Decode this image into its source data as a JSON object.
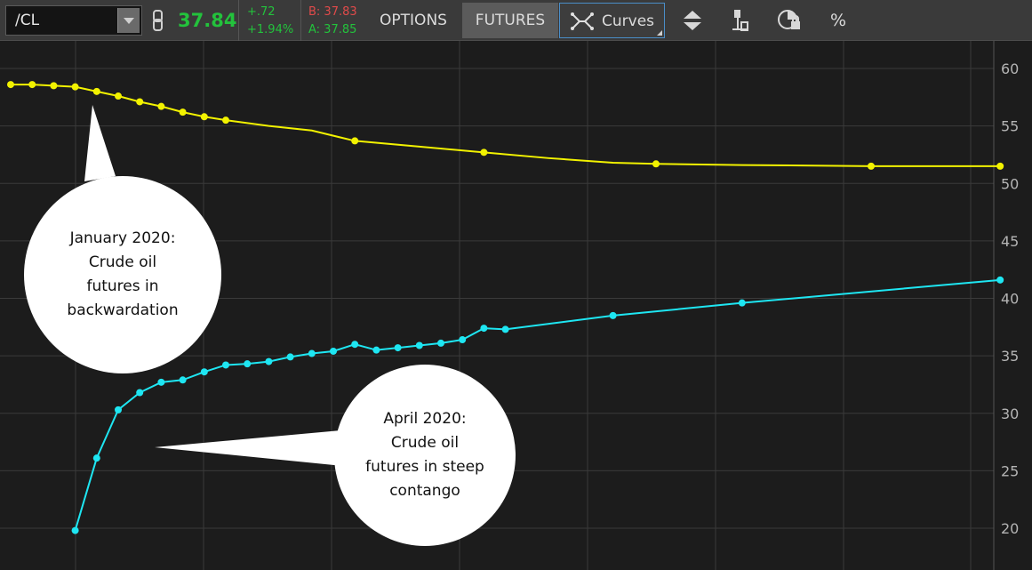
{
  "toolbar": {
    "symbol": "/CL",
    "last_price": "37.84",
    "change_abs": "+.72",
    "change_pct": "+1.94%",
    "bid": "B: 37.83",
    "ask": "A: 37.85",
    "tabs": {
      "options": "OPTIONS",
      "futures": "FUTURES",
      "curves": "Curves"
    },
    "percent_label": "%",
    "icons": [
      "link-icon",
      "curves-icon",
      "sort-icon",
      "bars-icon",
      "lock-icon"
    ]
  },
  "annotations": {
    "january": "January 2020:\nCrude oil\nfutures in\nbackwardation",
    "april": "April 2020:\nCrude oil\nfutures in steep\ncontango"
  },
  "colors": {
    "background": "#1c1c1c",
    "grid": "#3a3a3a",
    "january_series": "#f2f200",
    "april_series": "#1ee6f2",
    "price_up": "#23c23c",
    "bid": "#e04a4a"
  },
  "chart_data": {
    "type": "line",
    "y_ticks": [
      20,
      25,
      30,
      35,
      40,
      45,
      50,
      55,
      60
    ],
    "ylim": [
      18,
      61
    ],
    "y_axis_position": "right",
    "grid": true,
    "series": [
      {
        "values": [
          [
            0,
            58.6
          ],
          [
            1,
            58.6
          ],
          [
            2,
            58.5
          ],
          [
            3,
            58.4
          ],
          [
            4,
            58.0
          ],
          [
            5,
            57.6
          ],
          [
            6,
            57.1
          ],
          [
            7,
            56.7
          ],
          [
            8,
            56.2
          ],
          [
            9,
            55.8
          ],
          [
            10,
            55.5
          ],
          [
            12,
            55.0
          ],
          [
            14,
            54.6
          ],
          [
            16,
            53.7
          ],
          [
            19,
            53.2
          ],
          [
            22,
            52.7
          ],
          [
            25,
            52.2
          ],
          [
            28,
            51.8
          ],
          [
            30,
            51.7
          ],
          [
            34,
            51.6
          ],
          [
            40,
            51.5
          ],
          [
            46,
            51.5
          ]
        ],
        "marked_indices": [
          0,
          1,
          2,
          3,
          4,
          5,
          6,
          7,
          8,
          9,
          10,
          13,
          15,
          18,
          20,
          21
        ]
      },
      {
        "values": [
          [
            3,
            19.8
          ],
          [
            4,
            26.1
          ],
          [
            5,
            30.3
          ],
          [
            6,
            31.8
          ],
          [
            7,
            32.7
          ],
          [
            8,
            32.9
          ],
          [
            9,
            33.6
          ],
          [
            10,
            34.2
          ],
          [
            11,
            34.3
          ],
          [
            12,
            34.5
          ],
          [
            13,
            34.9
          ],
          [
            14,
            35.2
          ],
          [
            15,
            35.4
          ],
          [
            16,
            36.0
          ],
          [
            17,
            35.5
          ],
          [
            18,
            35.7
          ],
          [
            19,
            35.9
          ],
          [
            20,
            36.1
          ],
          [
            21,
            36.4
          ],
          [
            22,
            37.4
          ],
          [
            23,
            37.3
          ],
          [
            28,
            38.5
          ],
          [
            34,
            39.6
          ],
          [
            46,
            41.6
          ]
        ],
        "marked_indices": [
          0,
          1,
          2,
          3,
          4,
          5,
          6,
          7,
          8,
          9,
          10,
          11,
          12,
          13,
          14,
          15,
          16,
          17,
          18,
          19,
          20,
          21,
          22,
          23
        ]
      }
    ]
  }
}
